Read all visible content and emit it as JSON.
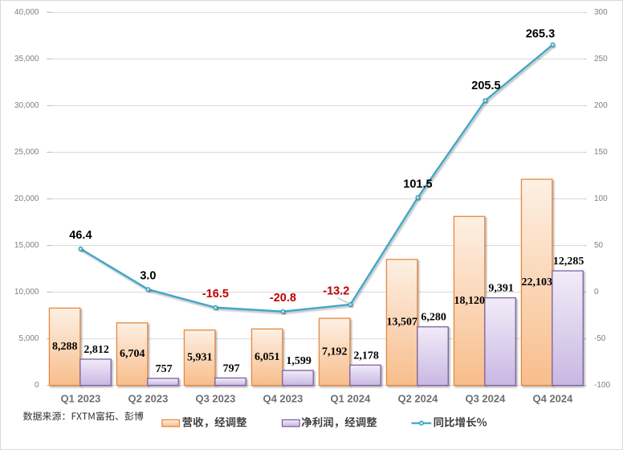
{
  "chart_data": {
    "type": "combo-bar-line",
    "title": "",
    "categories": [
      "Q1 2023",
      "Q2 2023",
      "Q3 2023",
      "Q4 2023",
      "Q1 2024",
      "Q2 2024",
      "Q3 2024",
      "Q4 2024"
    ],
    "series": [
      {
        "name": "营收，经调整",
        "type": "bar",
        "axis": "left",
        "values": [
          8288,
          6704,
          5931,
          6051,
          7192,
          13507,
          18120,
          22103
        ],
        "labels": [
          "8,288",
          "6,704",
          "5,931",
          "6,051",
          "7,192",
          "13,507",
          "18,120",
          "22,103"
        ]
      },
      {
        "name": "净利润，经调整",
        "type": "bar",
        "axis": "left",
        "values": [
          2812,
          757,
          797,
          1599,
          2178,
          6280,
          9391,
          12285
        ],
        "labels": [
          "2,812",
          "757",
          "797",
          "1,599",
          "2,178",
          "6,280",
          "9,391",
          "12,285"
        ]
      },
      {
        "name": "同比增长%",
        "type": "line",
        "axis": "right",
        "values": [
          46.4,
          3.0,
          -16.5,
          -20.8,
          -13.2,
          101.5,
          205.5,
          265.3
        ],
        "labels": [
          "46.4",
          "3.0",
          "-16.5",
          "-20.8",
          "-13.2",
          "101.5",
          "205.5",
          "265.3"
        ]
      }
    ],
    "left_axis": {
      "min": 0,
      "max": 40000,
      "step": 5000,
      "tick_labels": [
        "40,000",
        "35,000",
        "30,000",
        "25,000",
        "20,000",
        "15,000",
        "10,000",
        "5,000",
        "0"
      ]
    },
    "right_axis": {
      "min": -100,
      "max": 300,
      "step": 50,
      "tick_labels": [
        "300",
        "250",
        "200",
        "150",
        "100",
        "50",
        "0",
        "-50",
        "-100"
      ]
    },
    "grid": true,
    "legend_position": "bottom",
    "colors": {
      "revenue_bar_fill_top": "#FDF0E4",
      "revenue_bar_fill_bottom": "#F8BD8B",
      "revenue_bar_border": "#E8893C",
      "profit_bar_fill_top": "#F1ECF8",
      "profit_bar_fill_bottom": "#C9B7E2",
      "profit_bar_border": "#7E63A4",
      "line": "#3EA5C6",
      "marker_fill": "#BFE3F0",
      "gridline": "#D9D9D9",
      "axis_text": "#7F7F7F",
      "bar_label": "#000000",
      "line_label": "#000000",
      "negative_label": "#C00000",
      "legend_text": "#404040",
      "source_text": "#333333"
    }
  },
  "source_note": "数据来源：FXTM富拓、彭博"
}
